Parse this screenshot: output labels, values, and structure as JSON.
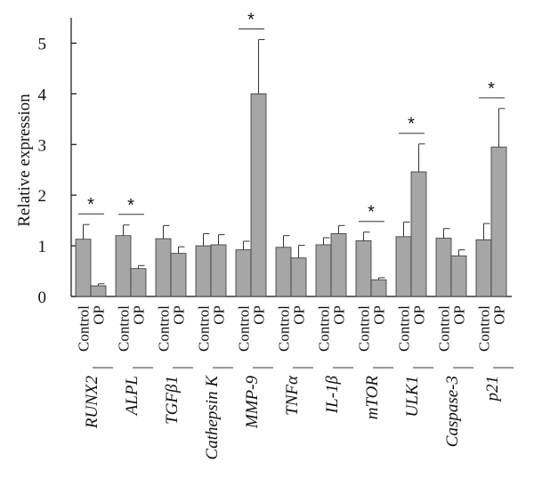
{
  "chart_data": {
    "type": "bar",
    "ylabel": "Relative expression",
    "ylim": [
      0,
      5.5
    ],
    "yticks": [
      0,
      1,
      2,
      3,
      4,
      5
    ],
    "bar_color": "#a6a6a6",
    "conditions": [
      "Control",
      "OP"
    ],
    "categories": [
      {
        "gene": "RUNX2",
        "control": 1.13,
        "control_err": 0.29,
        "op": 0.21,
        "op_err": 0.04,
        "significant": true
      },
      {
        "gene": "ALPL",
        "control": 1.2,
        "control_err": 0.21,
        "op": 0.55,
        "op_err": 0.06,
        "significant": true
      },
      {
        "gene": "TGFβ1",
        "control": 1.14,
        "control_err": 0.26,
        "op": 0.85,
        "op_err": 0.13,
        "significant": false
      },
      {
        "gene": "Cathepsin K",
        "control": 1.0,
        "control_err": 0.24,
        "op": 1.02,
        "op_err": 0.2,
        "significant": false
      },
      {
        "gene": "MMP-9",
        "control": 0.92,
        "control_err": 0.17,
        "op": 4.0,
        "op_err": 1.07,
        "significant": true
      },
      {
        "gene": "TNFα",
        "control": 0.97,
        "control_err": 0.23,
        "op": 0.76,
        "op_err": 0.25,
        "significant": false
      },
      {
        "gene": "IL-1β",
        "control": 1.02,
        "control_err": 0.14,
        "op": 1.24,
        "op_err": 0.16,
        "significant": false
      },
      {
        "gene": "mTOR",
        "control": 1.1,
        "control_err": 0.17,
        "op": 0.33,
        "op_err": 0.04,
        "significant": true
      },
      {
        "gene": "ULK1",
        "control": 1.18,
        "control_err": 0.29,
        "op": 2.46,
        "op_err": 0.55,
        "significant": true
      },
      {
        "gene": "Caspase-3",
        "control": 1.15,
        "control_err": 0.19,
        "op": 0.8,
        "op_err": 0.12,
        "significant": false
      },
      {
        "gene": "p21",
        "control": 1.12,
        "control_err": 0.32,
        "op": 2.95,
        "op_err": 0.76,
        "significant": true
      }
    ],
    "significance_marker": "*"
  }
}
